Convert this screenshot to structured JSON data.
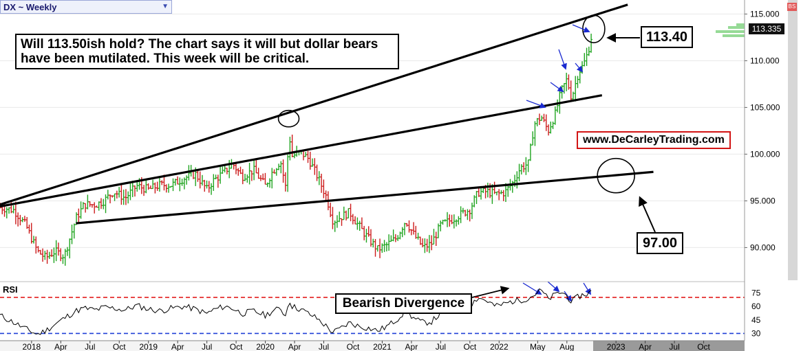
{
  "header": {
    "symbol_title": "DX ~ Weekly",
    "dropdown_icon": "triangle-down-icon"
  },
  "annotations": {
    "main_text_line1": "Will 113.50ish hold? The chart says it will but dollar bears",
    "main_text_line2": "have been mutilated. This week will be critical.",
    "upper_callout": "113.40",
    "lower_callout": "97.00",
    "divergence_label": "Bearish Divergence",
    "website": "www.DeCarleyTrading.com",
    "badge": "BS"
  },
  "price_tag": "113.335",
  "colors": {
    "up_bar": "#1fa41f",
    "down_bar": "#cc1b1b",
    "rsi_upper_line": "#e21d1d",
    "rsi_lower_line": "#1f3fd6",
    "arrow": "#1a2ad0"
  },
  "chart_data": [
    {
      "type": "bar",
      "title": "DX ~ Weekly",
      "ylim": [
        86.5,
        116.5
      ],
      "yticks": [
        "115.000",
        "110.000",
        "105.000",
        "100.000",
        "95.000",
        "90.000"
      ],
      "ytick_values": [
        115,
        110,
        105,
        100,
        95,
        90
      ],
      "xticks": [
        {
          "label": "2018",
          "t": 2018.0
        },
        {
          "label": "Apr",
          "t": 2018.25
        },
        {
          "label": "Jul",
          "t": 2018.5
        },
        {
          "label": "Oct",
          "t": 2018.75
        },
        {
          "label": "2019",
          "t": 2019.0
        },
        {
          "label": "Apr",
          "t": 2019.25
        },
        {
          "label": "Jul",
          "t": 2019.5
        },
        {
          "label": "Oct",
          "t": 2019.75
        },
        {
          "label": "2020",
          "t": 2020.0
        },
        {
          "label": "Apr",
          "t": 2020.25
        },
        {
          "label": "Jul",
          "t": 2020.5
        },
        {
          "label": "Oct",
          "t": 2020.75
        },
        {
          "label": "2021",
          "t": 2021.0
        },
        {
          "label": "Apr",
          "t": 2021.25
        },
        {
          "label": "Jul",
          "t": 2021.5
        },
        {
          "label": "Oct",
          "t": 2021.75
        },
        {
          "label": "2022",
          "t": 2022.0
        },
        {
          "label": "May",
          "t": 2022.33
        },
        {
          "label": "Aug",
          "t": 2022.58
        },
        {
          "label": "2023",
          "t": 2023.0
        },
        {
          "label": "Apr",
          "t": 2023.25
        },
        {
          "label": "Jul",
          "t": 2023.5
        },
        {
          "label": "Oct",
          "t": 2023.75
        }
      ],
      "xlim": [
        2017.73,
        2024.1
      ],
      "close_path": [
        [
          2017.73,
          94.3
        ],
        [
          2017.85,
          94.0
        ],
        [
          2017.95,
          92.4
        ],
        [
          2018.05,
          89.6
        ],
        [
          2018.12,
          88.9
        ],
        [
          2018.2,
          89.6
        ],
        [
          2018.28,
          89.1
        ],
        [
          2018.38,
          93.1
        ],
        [
          2018.45,
          94.6
        ],
        [
          2018.55,
          94.6
        ],
        [
          2018.62,
          95.0
        ],
        [
          2018.7,
          96.0
        ],
        [
          2018.8,
          95.3
        ],
        [
          2018.9,
          96.6
        ],
        [
          2019.0,
          96.2
        ],
        [
          2019.1,
          96.7
        ],
        [
          2019.2,
          96.7
        ],
        [
          2019.3,
          97.4
        ],
        [
          2019.4,
          97.9
        ],
        [
          2019.5,
          96.2
        ],
        [
          2019.55,
          97.1
        ],
        [
          2019.65,
          98.1
        ],
        [
          2019.72,
          99.0
        ],
        [
          2019.8,
          97.6
        ],
        [
          2019.9,
          98.3
        ],
        [
          2020.0,
          96.6
        ],
        [
          2020.05,
          97.9
        ],
        [
          2020.13,
          99.3
        ],
        [
          2020.18,
          96.0
        ],
        [
          2020.2,
          102.5
        ],
        [
          2020.23,
          99.8
        ],
        [
          2020.3,
          100.2
        ],
        [
          2020.37,
          99.5
        ],
        [
          2020.45,
          97.5
        ],
        [
          2020.52,
          95.5
        ],
        [
          2020.58,
          92.8
        ],
        [
          2020.65,
          93.3
        ],
        [
          2020.72,
          93.8
        ],
        [
          2020.8,
          92.3
        ],
        [
          2020.88,
          91.0
        ],
        [
          2020.96,
          89.8
        ],
        [
          2021.03,
          90.2
        ],
        [
          2021.12,
          91.0
        ],
        [
          2021.2,
          92.9
        ],
        [
          2021.28,
          91.2
        ],
        [
          2021.35,
          90.0
        ],
        [
          2021.42,
          90.4
        ],
        [
          2021.5,
          92.4
        ],
        [
          2021.58,
          92.9
        ],
        [
          2021.65,
          93.4
        ],
        [
          2021.75,
          94.1
        ],
        [
          2021.82,
          95.9
        ],
        [
          2021.9,
          96.0
        ],
        [
          2021.97,
          95.7
        ],
        [
          2022.05,
          95.9
        ],
        [
          2022.12,
          97.0
        ],
        [
          2022.18,
          98.5
        ],
        [
          2022.25,
          99.0
        ],
        [
          2022.3,
          103.2
        ],
        [
          2022.36,
          104.0
        ],
        [
          2022.42,
          102.5
        ],
        [
          2022.48,
          104.3
        ],
        [
          2022.53,
          106.7
        ],
        [
          2022.58,
          108.0
        ],
        [
          2022.62,
          106.0
        ],
        [
          2022.68,
          108.8
        ],
        [
          2022.72,
          109.5
        ],
        [
          2022.76,
          110.9
        ],
        [
          2022.8,
          113.2
        ]
      ],
      "trend_lines": [
        {
          "name": "upper-channel",
          "x": [
            2017.73,
            2023.1
          ],
          "y": [
            94.6,
            116.0
          ]
        },
        {
          "name": "middle-channel",
          "x": [
            2017.73,
            2022.88
          ],
          "y": [
            94.4,
            106.3
          ]
        },
        {
          "name": "lower-channel",
          "x": [
            2018.38,
            2023.32
          ],
          "y": [
            92.6,
            98.1
          ]
        }
      ],
      "circled_levels": [
        {
          "x": 2020.2,
          "y": 103.8
        },
        {
          "x": 2022.81,
          "y": 113.4
        },
        {
          "x": 2023.0,
          "y": 97.7
        }
      ],
      "legend": "none"
    },
    {
      "type": "line",
      "title": "RSI",
      "ylim": [
        25,
        86
      ],
      "yticks": [
        "75",
        "60",
        "45",
        "30"
      ],
      "ytick_values": [
        75,
        60,
        45,
        30
      ],
      "reference_lines": [
        70,
        30
      ],
      "rsi_path": [
        [
          2017.73,
          50
        ],
        [
          2017.85,
          42
        ],
        [
          2017.95,
          35
        ],
        [
          2018.05,
          29
        ],
        [
          2018.12,
          33
        ],
        [
          2018.2,
          40
        ],
        [
          2018.28,
          47
        ],
        [
          2018.38,
          55
        ],
        [
          2018.45,
          58
        ],
        [
          2018.55,
          56
        ],
        [
          2018.62,
          59
        ],
        [
          2018.7,
          58
        ],
        [
          2018.8,
          56
        ],
        [
          2018.9,
          61
        ],
        [
          2019.0,
          57
        ],
        [
          2019.1,
          55
        ],
        [
          2019.2,
          58
        ],
        [
          2019.3,
          60
        ],
        [
          2019.4,
          57
        ],
        [
          2019.5,
          52
        ],
        [
          2019.55,
          56
        ],
        [
          2019.65,
          60
        ],
        [
          2019.72,
          58
        ],
        [
          2019.8,
          52
        ],
        [
          2019.9,
          55
        ],
        [
          2020.0,
          50
        ],
        [
          2020.05,
          54
        ],
        [
          2020.13,
          58
        ],
        [
          2020.18,
          48
        ],
        [
          2020.2,
          70
        ],
        [
          2020.23,
          60
        ],
        [
          2020.3,
          57
        ],
        [
          2020.37,
          52
        ],
        [
          2020.45,
          46
        ],
        [
          2020.52,
          38
        ],
        [
          2020.58,
          31
        ],
        [
          2020.65,
          36
        ],
        [
          2020.72,
          42
        ],
        [
          2020.8,
          38
        ],
        [
          2020.88,
          36
        ],
        [
          2020.96,
          33
        ],
        [
          2021.03,
          37
        ],
        [
          2021.12,
          45
        ],
        [
          2021.2,
          55
        ],
        [
          2021.28,
          46
        ],
        [
          2021.35,
          42
        ],
        [
          2021.42,
          43
        ],
        [
          2021.5,
          52
        ],
        [
          2021.58,
          55
        ],
        [
          2021.65,
          58
        ],
        [
          2021.75,
          61
        ],
        [
          2021.82,
          70
        ],
        [
          2021.9,
          66
        ],
        [
          2021.97,
          60
        ],
        [
          2022.05,
          63
        ],
        [
          2022.12,
          66
        ],
        [
          2022.18,
          67
        ],
        [
          2022.25,
          69
        ],
        [
          2022.3,
          73
        ],
        [
          2022.36,
          78
        ],
        [
          2022.42,
          68
        ],
        [
          2022.48,
          73
        ],
        [
          2022.53,
          76
        ],
        [
          2022.58,
          72
        ],
        [
          2022.62,
          65
        ],
        [
          2022.68,
          71
        ],
        [
          2022.72,
          73
        ],
        [
          2022.76,
          74
        ],
        [
          2022.8,
          78
        ]
      ]
    }
  ]
}
